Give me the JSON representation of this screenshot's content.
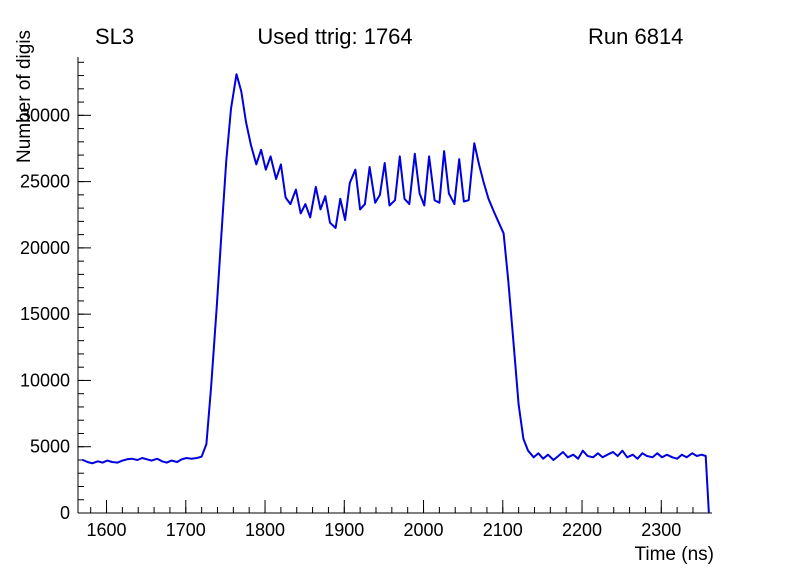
{
  "header": {
    "left": "SL3",
    "center": "Used ttrig: 1764",
    "right": "Run 6814"
  },
  "chart_data": {
    "type": "line",
    "title": "",
    "xlabel": "Time (ns)",
    "ylabel": "Number of digis",
    "xlim": [
      1564,
      2364
    ],
    "ylim": [
      0,
      34400
    ],
    "x_ticks": [
      1600,
      1700,
      1800,
      1900,
      2000,
      2100,
      2200,
      2300
    ],
    "y_ticks": [
      0,
      5000,
      10000,
      15000,
      20000,
      25000,
      30000
    ],
    "x_minor_step": 20,
    "y_minor_step": 1000,
    "grid": false,
    "legend": "none",
    "line_color": "#0000e0",
    "axis_color": "#000000",
    "points": [
      [
        1570,
        4000
      ],
      [
        1576,
        3850
      ],
      [
        1582,
        3750
      ],
      [
        1589,
        3900
      ],
      [
        1595,
        3800
      ],
      [
        1601,
        3950
      ],
      [
        1607,
        3850
      ],
      [
        1614,
        3800
      ],
      [
        1620,
        3950
      ],
      [
        1626,
        4050
      ],
      [
        1632,
        4100
      ],
      [
        1639,
        4000
      ],
      [
        1645,
        4150
      ],
      [
        1651,
        4050
      ],
      [
        1657,
        3950
      ],
      [
        1664,
        4100
      ],
      [
        1670,
        3900
      ],
      [
        1676,
        3800
      ],
      [
        1682,
        3950
      ],
      [
        1689,
        3850
      ],
      [
        1695,
        4050
      ],
      [
        1701,
        4150
      ],
      [
        1707,
        4100
      ],
      [
        1714,
        4150
      ],
      [
        1720,
        4250
      ],
      [
        1726,
        5200
      ],
      [
        1732,
        9500
      ],
      [
        1739,
        15500
      ],
      [
        1745,
        21000
      ],
      [
        1751,
        26500
      ],
      [
        1757,
        30500
      ],
      [
        1764,
        33100
      ],
      [
        1770,
        31800
      ],
      [
        1776,
        29500
      ],
      [
        1782,
        27800
      ],
      [
        1789,
        26300
      ],
      [
        1795,
        27400
      ],
      [
        1801,
        25900
      ],
      [
        1807,
        26900
      ],
      [
        1814,
        25200
      ],
      [
        1820,
        26300
      ],
      [
        1826,
        23800
      ],
      [
        1832,
        23300
      ],
      [
        1839,
        24400
      ],
      [
        1845,
        22600
      ],
      [
        1851,
        23300
      ],
      [
        1857,
        22300
      ],
      [
        1864,
        24600
      ],
      [
        1870,
        22900
      ],
      [
        1876,
        23900
      ],
      [
        1882,
        21900
      ],
      [
        1889,
        21500
      ],
      [
        1895,
        23700
      ],
      [
        1901,
        22100
      ],
      [
        1907,
        24900
      ],
      [
        1914,
        25900
      ],
      [
        1920,
        22900
      ],
      [
        1926,
        23300
      ],
      [
        1932,
        26100
      ],
      [
        1939,
        23400
      ],
      [
        1945,
        24000
      ],
      [
        1951,
        26400
      ],
      [
        1957,
        23200
      ],
      [
        1964,
        23600
      ],
      [
        1970,
        26900
      ],
      [
        1976,
        23700
      ],
      [
        1982,
        23300
      ],
      [
        1989,
        27100
      ],
      [
        1995,
        24100
      ],
      [
        2001,
        23200
      ],
      [
        2007,
        26900
      ],
      [
        2014,
        23600
      ],
      [
        2020,
        23400
      ],
      [
        2026,
        27300
      ],
      [
        2032,
        24100
      ],
      [
        2039,
        23300
      ],
      [
        2045,
        26700
      ],
      [
        2051,
        23500
      ],
      [
        2057,
        23600
      ],
      [
        2064,
        27900
      ],
      [
        2070,
        26300
      ],
      [
        2076,
        24900
      ],
      [
        2082,
        23700
      ],
      [
        2089,
        22700
      ],
      [
        2095,
        21900
      ],
      [
        2101,
        21100
      ],
      [
        2107,
        17500
      ],
      [
        2114,
        12500
      ],
      [
        2120,
        8200
      ],
      [
        2126,
        5600
      ],
      [
        2132,
        4700
      ],
      [
        2139,
        4200
      ],
      [
        2145,
        4500
      ],
      [
        2151,
        4100
      ],
      [
        2157,
        4400
      ],
      [
        2164,
        4000
      ],
      [
        2170,
        4300
      ],
      [
        2176,
        4600
      ],
      [
        2182,
        4200
      ],
      [
        2189,
        4400
      ],
      [
        2195,
        4100
      ],
      [
        2201,
        4700
      ],
      [
        2207,
        4300
      ],
      [
        2214,
        4200
      ],
      [
        2220,
        4500
      ],
      [
        2226,
        4200
      ],
      [
        2232,
        4400
      ],
      [
        2239,
        4600
      ],
      [
        2245,
        4300
      ],
      [
        2251,
        4700
      ],
      [
        2257,
        4200
      ],
      [
        2264,
        4400
      ],
      [
        2270,
        4100
      ],
      [
        2276,
        4500
      ],
      [
        2282,
        4300
      ],
      [
        2289,
        4200
      ],
      [
        2295,
        4500
      ],
      [
        2301,
        4200
      ],
      [
        2307,
        4400
      ],
      [
        2314,
        4200
      ],
      [
        2320,
        4100
      ],
      [
        2326,
        4400
      ],
      [
        2332,
        4200
      ],
      [
        2339,
        4500
      ],
      [
        2345,
        4300
      ],
      [
        2351,
        4400
      ],
      [
        2356,
        4300
      ],
      [
        2360,
        100
      ]
    ]
  }
}
